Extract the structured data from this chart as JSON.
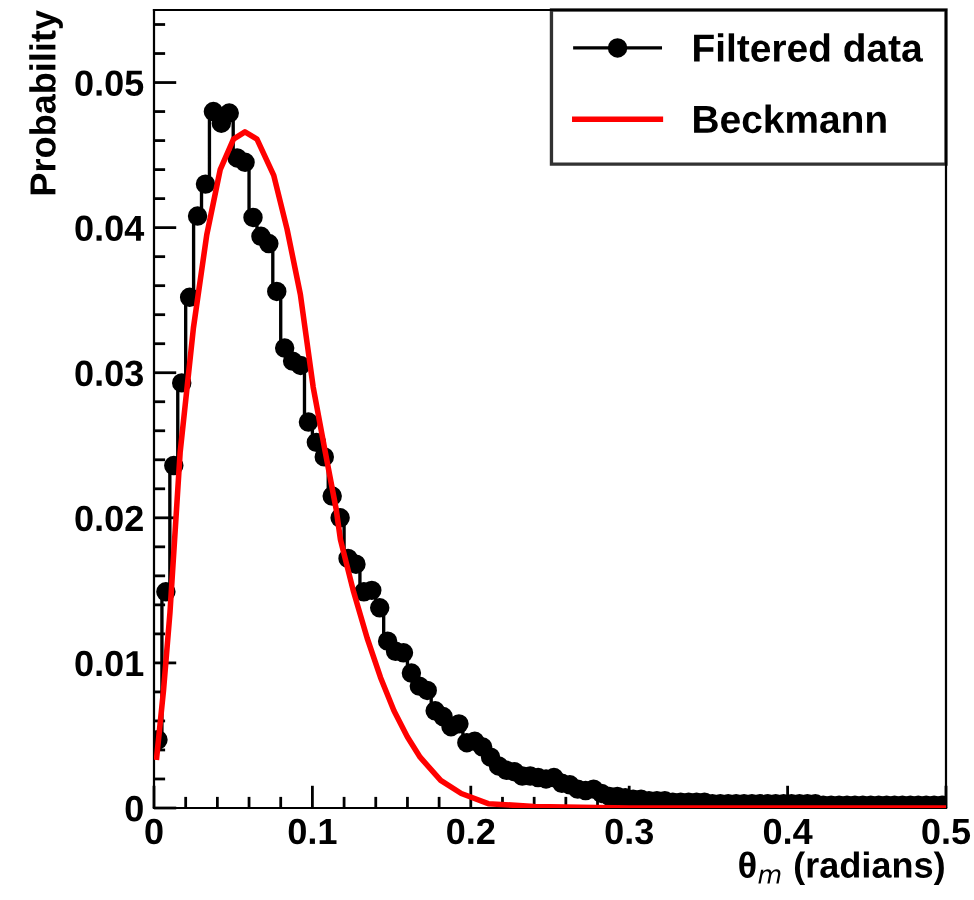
{
  "chart_data": {
    "type": "line",
    "xlabel": "θ$_{m}$ (radians)",
    "ylabel": "Probability",
    "xlim": [
      0,
      0.5
    ],
    "ylim": [
      0,
      0.055
    ],
    "xticks": [
      0,
      0.1,
      0.2,
      0.3,
      0.4,
      0.5
    ],
    "yticks": [
      0,
      0.01,
      0.02,
      0.03,
      0.04,
      0.05
    ],
    "grid": false,
    "legend": "top right",
    "series": [
      {
        "name": "Filtered data",
        "type": "step",
        "marker": "circle",
        "color": "#000000",
        "x": [
          0.0025,
          0.0075,
          0.0125,
          0.0175,
          0.0225,
          0.0275,
          0.0325,
          0.0375,
          0.0425,
          0.0475,
          0.0525,
          0.0575,
          0.0625,
          0.0675,
          0.0725,
          0.0775,
          0.0825,
          0.0875,
          0.0925,
          0.0975,
          0.1025,
          0.1075,
          0.1125,
          0.1175,
          0.1225,
          0.1275,
          0.1325,
          0.1375,
          0.1425,
          0.1475,
          0.1525,
          0.1575,
          0.1625,
          0.1675,
          0.1725,
          0.1775,
          0.1825,
          0.1875,
          0.1925,
          0.1975,
          0.2025,
          0.2075,
          0.2125,
          0.2175,
          0.2225,
          0.2275,
          0.2325,
          0.2375,
          0.2425,
          0.2475,
          0.2525,
          0.2575,
          0.2625,
          0.2675,
          0.2725,
          0.2775,
          0.2825,
          0.2875,
          0.2925,
          0.2975,
          0.3025,
          0.3075,
          0.3125,
          0.3175,
          0.3225,
          0.3275,
          0.3325,
          0.3375,
          0.3425,
          0.3475,
          0.3525,
          0.3575,
          0.3625,
          0.3675,
          0.3725,
          0.3775,
          0.3825,
          0.3875,
          0.3925,
          0.3975,
          0.4025,
          0.4075,
          0.4125,
          0.4175,
          0.4225,
          0.4275,
          0.4325,
          0.4375,
          0.4425,
          0.4475,
          0.4525,
          0.4575,
          0.4625,
          0.4675,
          0.4725,
          0.4775,
          0.4825,
          0.4875,
          0.4925,
          0.4975
        ],
        "values": [
          0.0047,
          0.0149,
          0.0236,
          0.0293,
          0.0352,
          0.0408,
          0.043,
          0.048,
          0.0472,
          0.0479,
          0.0448,
          0.0445,
          0.0407,
          0.0394,
          0.0389,
          0.0356,
          0.0317,
          0.0308,
          0.0305,
          0.0266,
          0.0252,
          0.0242,
          0.0215,
          0.02,
          0.0172,
          0.0168,
          0.0149,
          0.015,
          0.0138,
          0.0115,
          0.0108,
          0.0107,
          0.0093,
          0.0084,
          0.0081,
          0.0067,
          0.0063,
          0.0056,
          0.0058,
          0.0045,
          0.0046,
          0.0042,
          0.0035,
          0.0029,
          0.0026,
          0.0025,
          0.0022,
          0.0022,
          0.0021,
          0.002,
          0.0021,
          0.0017,
          0.0016,
          0.0013,
          0.0012,
          0.0013,
          0.001,
          0.0008,
          0.0008,
          0.0007,
          0.0006,
          0.0006,
          0.0005,
          0.0005,
          0.0005,
          0.0004,
          0.0004,
          0.0004,
          0.0004,
          0.0004,
          0.0003,
          0.0003,
          0.0003,
          0.0003,
          0.0003,
          0.0003,
          0.0003,
          0.0003,
          0.0003,
          0.0003,
          0.0003,
          0.0003,
          0.0003,
          0.0003,
          0.0002,
          0.0002,
          0.0002,
          0.0002,
          0.0002,
          0.0002,
          0.0002,
          0.0002,
          0.0002,
          0.0002,
          0.0002,
          0.0002,
          0.0002,
          0.0002,
          0.0002,
          0.0002
        ]
      },
      {
        "name": "Beckmann",
        "marker": "none",
        "color": "#ff0000",
        "x": [
          0.0017,
          0.006,
          0.0101,
          0.0165,
          0.0249,
          0.0333,
          0.0418,
          0.0502,
          0.0574,
          0.065,
          0.0756,
          0.084,
          0.0924,
          0.1005,
          0.108,
          0.115,
          0.1177,
          0.126,
          0.1346,
          0.143,
          0.1515,
          0.16,
          0.168,
          0.181,
          0.194,
          0.211,
          0.24,
          0.3,
          0.4,
          0.5
        ],
        "values": [
          0.0035,
          0.0081,
          0.0135,
          0.0245,
          0.0331,
          0.0395,
          0.044,
          0.0461,
          0.0466,
          0.0461,
          0.0436,
          0.0399,
          0.0354,
          0.029,
          0.0246,
          0.0206,
          0.0185,
          0.0149,
          0.0117,
          0.009,
          0.0067,
          0.0049,
          0.0035,
          0.0019,
          0.001,
          0.0003,
          0.0001,
          0,
          0,
          0
        ]
      }
    ]
  }
}
